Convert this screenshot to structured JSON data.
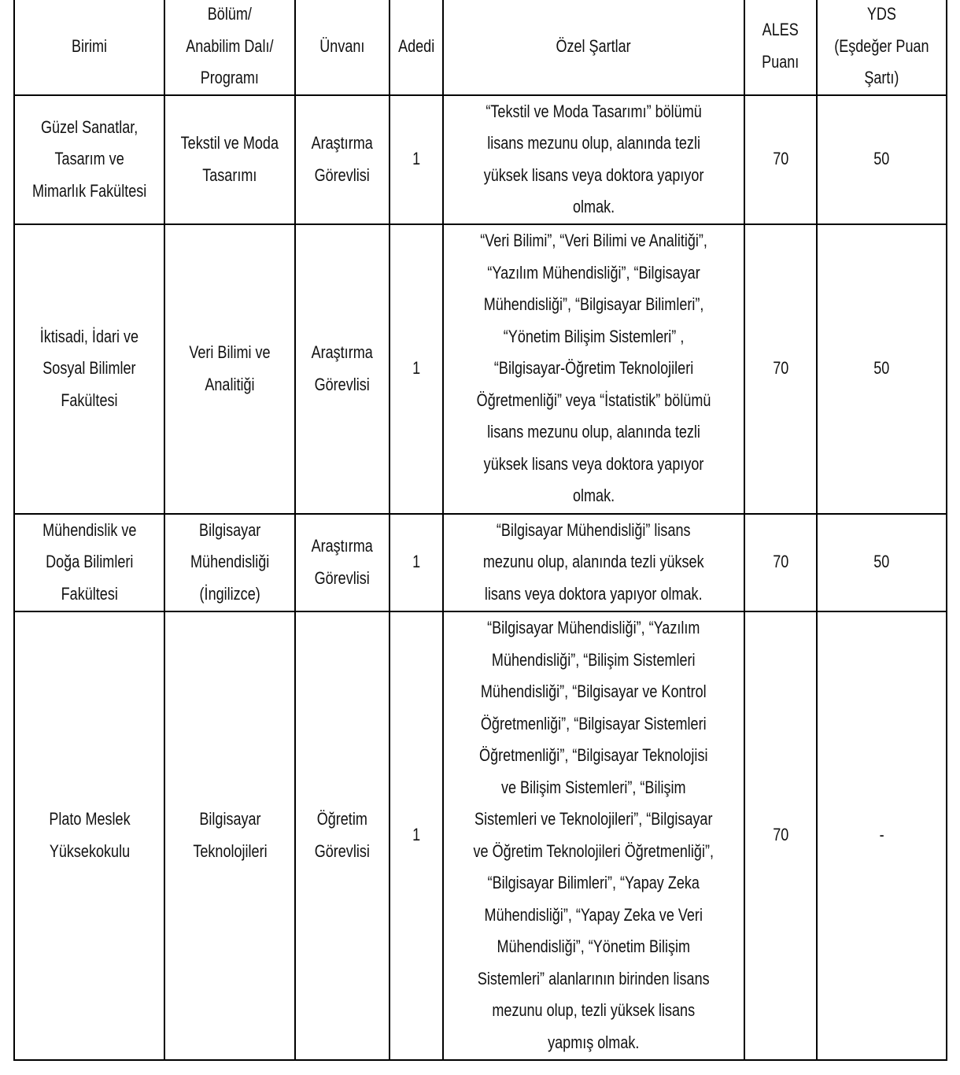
{
  "headers": [
    "Birimi",
    "Bölüm/\nAnabilim Dalı/\nProgramı",
    "Ünvanı",
    "Adedi",
    "Özel Şartlar",
    "ALES\nPuanı",
    "YDS\n(Eşdeğer Puan\nŞartı)"
  ],
  "rows": [
    {
      "unit": "Güzel Sanatlar,\nTasarım ve\nMimarlık Fakültesi",
      "department": "Tekstil ve Moda\nTasarımı",
      "title": "Araştırma\nGörevlisi",
      "count": "1",
      "conditions": "“Tekstil ve Moda Tasarımı” bölümü\nlisans mezunu olup, alanında tezli\nyüksek lisans veya doktora yapıyor\nolmak.",
      "ales": "70",
      "yds": "50"
    },
    {
      "unit": "İktisadi, İdari ve\nSosyal Bilimler\nFakültesi",
      "department": "Veri Bilimi ve\nAnalitiği",
      "title": "Araştırma\nGörevlisi",
      "count": "1",
      "conditions": "“Veri Bilimi”, “Veri Bilimi ve Analitiği”,\n“Yazılım Mühendisliği”, “Bilgisayar\nMühendisliği”, “Bilgisayar Bilimleri”,\n“Yönetim Bilişim Sistemleri” ,\n“Bilgisayar-Öğretim Teknolojileri\nÖğretmenliği” veya “İstatistik” bölümü\nlisans mezunu olup, alanında tezli\nyüksek lisans veya doktora yapıyor\nolmak.",
      "ales": "70",
      "yds": "50"
    },
    {
      "unit": "Mühendislik ve\nDoğa Bilimleri\nFakültesi",
      "department": "Bilgisayar\nMühendisliği\n(İngilizce)",
      "title": "Araştırma\nGörevlisi",
      "count": "1",
      "conditions": "“Bilgisayar Mühendisliği” lisans\nmezunu olup, alanında tezli yüksek\nlisans veya doktora yapıyor olmak.",
      "ales": "70",
      "yds": "50"
    },
    {
      "unit": "Plato Meslek\nYüksekokulu",
      "department": "Bilgisayar\nTeknolojileri",
      "title": "Öğretim\nGörevlisi",
      "count": "1",
      "conditions": "“Bilgisayar Mühendisliği”, “Yazılım\nMühendisliği”, “Bilişim Sistemleri\nMühendisliği”, “Bilgisayar ve Kontrol\nÖğretmenliği”, “Bilgisayar Sistemleri\nÖğretmenliği”, “Bilgisayar Teknolojisi\nve Bilişim Sistemleri”, “Bilişim\nSistemleri ve Teknolojileri”, “Bilgisayar\nve Öğretim Teknolojileri Öğretmenliği”,\n“Bilgisayar Bilimleri”, “Yapay Zeka\nMühendisliği”, “Yapay Zeka ve Veri\nMühendisliği”, “Yönetim Bilişim\nSistemleri” alanlarının birinden lisans\nmezunu olup, tezli yüksek lisans\nyapmış olmak.",
      "ales": "70",
      "yds": "-"
    }
  ]
}
